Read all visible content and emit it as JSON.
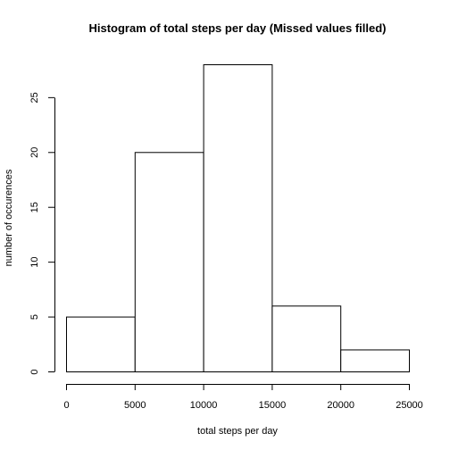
{
  "chart_data": {
    "type": "bar",
    "title": "Histogram of total steps per day (Missed values filled)",
    "xlabel": "total steps per day",
    "ylabel": "number of occurences",
    "bins": [
      {
        "start": 0,
        "end": 5000,
        "count": 5
      },
      {
        "start": 5000,
        "end": 10000,
        "count": 20
      },
      {
        "start": 10000,
        "end": 15000,
        "count": 28
      },
      {
        "start": 15000,
        "end": 20000,
        "count": 6
      },
      {
        "start": 20000,
        "end": 25000,
        "count": 2
      }
    ],
    "xlim": [
      0,
      25000
    ],
    "ylim": [
      0,
      28
    ],
    "xticks": [
      0,
      5000,
      10000,
      15000,
      20000,
      25000
    ],
    "yticks": [
      0,
      5,
      10,
      15,
      20,
      25
    ],
    "grid": false,
    "legend": "none",
    "colors": {
      "bar_fill": "#ffffff",
      "bar_stroke": "#000000"
    }
  }
}
